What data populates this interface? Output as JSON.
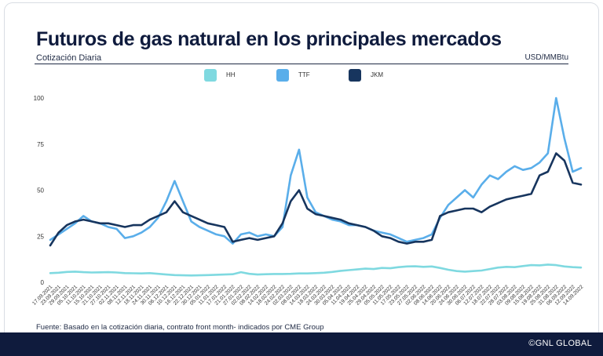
{
  "header": {
    "title": "Futuros de gas natural en los principales mercados",
    "subtitle": "Cotización Diaria",
    "unit": "USD/MMBtu"
  },
  "footer": {
    "source": "Fuente: Basado en la cotización diaria, contrato front month- indicados por CME Group",
    "copyright": "©GNL GLOBAL"
  },
  "chart_data": {
    "type": "line",
    "categories": [
      "17.09.2021",
      "23.09.2021",
      "29.09.2021",
      "05.10.2021",
      "11.10.2021",
      "15.10.2021",
      "21.10.2021",
      "27.10.2021",
      "02.11.2021",
      "08.11.2021",
      "12.11.2021",
      "18.11.2021",
      "24.11.2021",
      "30.11.2021",
      "06.12.2021",
      "10.12.2021",
      "16.12.2021",
      "22.12.2021",
      "30.12.2021",
      "05.01.2022",
      "11.01.2022",
      "17.01.2022",
      "21.01.2022",
      "27.01.2022",
      "02.02.2022",
      "08.02.2022",
      "14.02.2022",
      "18.02.2022",
      "24.02.2022",
      "02.03.2022",
      "08.03.2022",
      "14.03.2022",
      "18.03.2022",
      "24.03.2022",
      "30.03.2022",
      "05.04.2022",
      "11.04.2022",
      "19.04.2022",
      "25.04.2022",
      "29.04.2022",
      "05.05.2022",
      "11.05.2022",
      "17.05.2022",
      "23.05.2022",
      "27.05.2022",
      "02.06.2022",
      "08.06.2022",
      "14.06.2022",
      "20.06.2022",
      "24.06.2022",
      "30.06.2022",
      "06.07.2022",
      "12.07.2022",
      "18.07.2022",
      "22.07.2022",
      "28.07.2022",
      "03.08.2022",
      "09.08.2022",
      "15.08.2022",
      "19.08.2022",
      "25.08.2022",
      "31.08.2022",
      "06.09.2022",
      "12.09.2022",
      "14.09.2022"
    ],
    "ylim": [
      0,
      100
    ],
    "yticks": [
      0,
      25,
      50,
      75,
      100
    ],
    "legend_position": "top",
    "grid": false,
    "series": [
      {
        "name": "HH",
        "color": "#7fd9e0",
        "values": [
          5,
          5.2,
          5.6,
          5.8,
          5.5,
          5.3,
          5.4,
          5.5,
          5.3,
          5,
          4.9,
          4.8,
          5,
          4.6,
          4.2,
          3.9,
          3.8,
          3.7,
          3.8,
          3.9,
          4.1,
          4.2,
          4.4,
          5.5,
          4.6,
          4.2,
          4.4,
          4.5,
          4.5,
          4.6,
          4.8,
          4.8,
          5,
          5.2,
          5.6,
          6.2,
          6.6,
          7,
          7.4,
          7.2,
          7.8,
          7.6,
          8.2,
          8.6,
          8.7,
          8.4,
          8.6,
          7.8,
          6.8,
          6.1,
          5.8,
          6.1,
          6.4,
          7.2,
          8,
          8.4,
          8.2,
          8.8,
          9.3,
          9.2,
          9.6,
          9.3,
          8.6,
          8.2,
          8
        ]
      },
      {
        "name": "TTF",
        "color": "#5aaeea",
        "values": [
          23,
          26,
          29,
          32,
          36,
          33,
          32,
          30,
          29,
          24,
          25,
          27,
          30,
          35,
          44,
          55,
          44,
          33,
          30,
          28,
          26,
          25,
          21,
          26,
          27,
          25,
          26,
          25,
          30,
          58,
          72,
          46,
          38,
          36,
          34,
          33,
          31,
          31,
          30,
          28,
          27,
          26,
          24,
          22,
          23,
          24,
          26,
          35,
          42,
          46,
          50,
          46,
          53,
          58,
          56,
          60,
          63,
          61,
          62,
          65,
          70,
          100,
          78,
          60,
          62
        ]
      },
      {
        "name": "JKM",
        "color": "#17355e",
        "values": [
          20,
          27,
          31,
          33,
          34,
          33,
          32,
          32,
          31,
          30,
          31,
          31,
          34,
          36,
          38,
          44,
          38,
          36,
          34,
          32,
          31,
          30,
          22,
          23,
          24,
          23,
          24,
          25,
          32,
          44,
          50,
          40,
          37,
          36,
          35,
          34,
          32,
          31,
          30,
          28,
          25,
          24,
          22,
          21,
          22,
          22,
          23,
          36,
          38,
          39,
          40,
          40,
          38,
          41,
          43,
          45,
          46,
          47,
          48,
          58,
          60,
          70,
          66,
          54,
          53
        ]
      }
    ]
  }
}
